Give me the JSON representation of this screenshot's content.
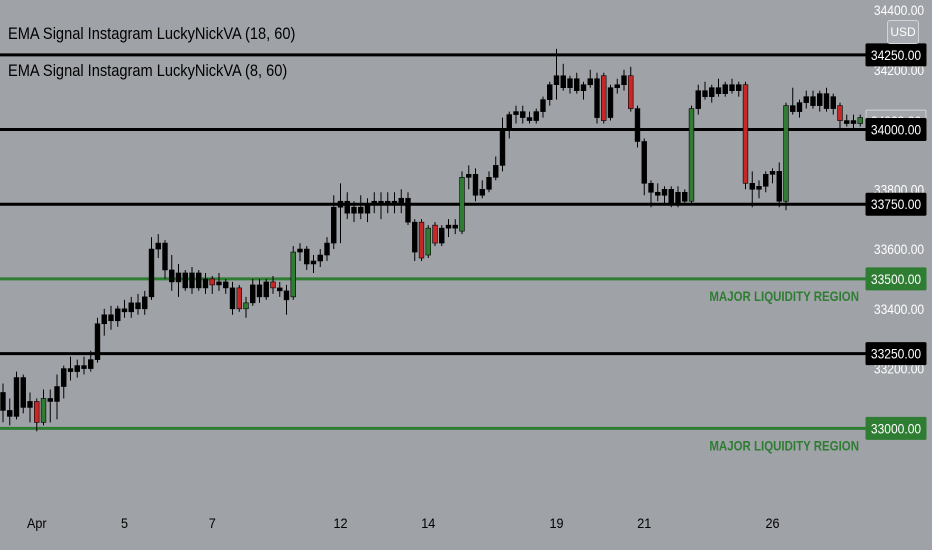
{
  "legend": {
    "line1": "EMA Signal Instagram LuckyNickVA (18, 60)",
    "line2": "EMA Signal Instagram LuckyNickVA (8, 60)"
  },
  "currency_button": "USD",
  "colors": {
    "background": "#9fa2a7",
    "bull": "#2e7d32",
    "bear": "#c62828",
    "neutral": "#000000",
    "liquidity": "#2e7d32",
    "level_line": "#000000"
  },
  "chart_data": {
    "type": "candlestick",
    "title": "",
    "xlabel": "",
    "ylabel": "",
    "ylim": [
      32710,
      34400
    ],
    "y_ticks": [
      "34400.00",
      "34200.00",
      "33800.00",
      "33600.00",
      "33400.00",
      "33200.00"
    ],
    "x_ticks": [
      {
        "label": "Apr",
        "bar": 5
      },
      {
        "label": "5",
        "bar": 18
      },
      {
        "label": "7",
        "bar": 31
      },
      {
        "label": "12",
        "bar": 50
      },
      {
        "label": "14",
        "bar": 63
      },
      {
        "label": "19",
        "bar": 82
      },
      {
        "label": "21",
        "bar": 95
      },
      {
        "label": "26",
        "bar": 114
      }
    ],
    "current_price": "34028.26",
    "levels": [
      {
        "price": 34250,
        "label": "34250.00",
        "kind": "level"
      },
      {
        "price": 34028.26,
        "label": "34028.26",
        "kind": "current"
      },
      {
        "price": 34000,
        "label": "34000.00",
        "kind": "level"
      },
      {
        "price": 33750,
        "label": "33750.00",
        "kind": "level"
      },
      {
        "price": 33500,
        "label": "33500.00",
        "kind": "liquidity",
        "note": "MAJOR LIQUIDITY REGION"
      },
      {
        "price": 33250,
        "label": "33250.00",
        "kind": "level"
      },
      {
        "price": 33000,
        "label": "33000.00",
        "kind": "liquidity",
        "note": "MAJOR LIQUIDITY REGION"
      }
    ],
    "candles": [
      {
        "o": 33120,
        "h": 33150,
        "l": 33020,
        "c": 33060,
        "t": "n"
      },
      {
        "o": 33060,
        "h": 33100,
        "l": 33010,
        "c": 33040,
        "t": "n"
      },
      {
        "o": 33040,
        "h": 33190,
        "l": 33030,
        "c": 33170,
        "t": "n"
      },
      {
        "o": 33170,
        "h": 33180,
        "l": 33050,
        "c": 33070,
        "t": "n"
      },
      {
        "o": 33070,
        "h": 33120,
        "l": 33020,
        "c": 33090,
        "t": "n"
      },
      {
        "o": 33090,
        "h": 33100,
        "l": 32990,
        "c": 33020,
        "t": "r"
      },
      {
        "o": 33020,
        "h": 33130,
        "l": 33010,
        "c": 33100,
        "t": "g"
      },
      {
        "o": 33100,
        "h": 33130,
        "l": 33020,
        "c": 33090,
        "t": "n"
      },
      {
        "o": 33090,
        "h": 33180,
        "l": 33030,
        "c": 33140,
        "t": "n"
      },
      {
        "o": 33140,
        "h": 33210,
        "l": 33100,
        "c": 33200,
        "t": "n"
      },
      {
        "o": 33200,
        "h": 33240,
        "l": 33160,
        "c": 33190,
        "t": "n"
      },
      {
        "o": 33190,
        "h": 33230,
        "l": 33170,
        "c": 33210,
        "t": "n"
      },
      {
        "o": 33210,
        "h": 33240,
        "l": 33180,
        "c": 33200,
        "t": "n"
      },
      {
        "o": 33200,
        "h": 33260,
        "l": 33190,
        "c": 33230,
        "t": "n"
      },
      {
        "o": 33230,
        "h": 33370,
        "l": 33220,
        "c": 33350,
        "t": "n"
      },
      {
        "o": 33350,
        "h": 33400,
        "l": 33310,
        "c": 33380,
        "t": "n"
      },
      {
        "o": 33380,
        "h": 33410,
        "l": 33330,
        "c": 33360,
        "t": "n"
      },
      {
        "o": 33360,
        "h": 33410,
        "l": 33340,
        "c": 33400,
        "t": "n"
      },
      {
        "o": 33400,
        "h": 33430,
        "l": 33370,
        "c": 33390,
        "t": "n"
      },
      {
        "o": 33390,
        "h": 33440,
        "l": 33370,
        "c": 33420,
        "t": "n"
      },
      {
        "o": 33420,
        "h": 33450,
        "l": 33380,
        "c": 33400,
        "t": "n"
      },
      {
        "o": 33400,
        "h": 33460,
        "l": 33380,
        "c": 33440,
        "t": "n"
      },
      {
        "o": 33440,
        "h": 33640,
        "l": 33430,
        "c": 33600,
        "t": "n"
      },
      {
        "o": 33600,
        "h": 33650,
        "l": 33570,
        "c": 33620,
        "t": "n"
      },
      {
        "o": 33620,
        "h": 33630,
        "l": 33500,
        "c": 33530,
        "t": "n"
      },
      {
        "o": 33530,
        "h": 33580,
        "l": 33460,
        "c": 33490,
        "t": "n"
      },
      {
        "o": 33490,
        "h": 33550,
        "l": 33440,
        "c": 33520,
        "t": "n"
      },
      {
        "o": 33520,
        "h": 33530,
        "l": 33460,
        "c": 33470,
        "t": "n"
      },
      {
        "o": 33470,
        "h": 33540,
        "l": 33450,
        "c": 33520,
        "t": "n"
      },
      {
        "o": 33520,
        "h": 33530,
        "l": 33460,
        "c": 33470,
        "t": "n"
      },
      {
        "o": 33470,
        "h": 33520,
        "l": 33450,
        "c": 33500,
        "t": "n"
      },
      {
        "o": 33500,
        "h": 33510,
        "l": 33450,
        "c": 33480,
        "t": "r"
      },
      {
        "o": 33480,
        "h": 33520,
        "l": 33460,
        "c": 33490,
        "t": "n"
      },
      {
        "o": 33490,
        "h": 33500,
        "l": 33450,
        "c": 33470,
        "t": "n"
      },
      {
        "o": 33470,
        "h": 33490,
        "l": 33380,
        "c": 33400,
        "t": "n"
      },
      {
        "o": 33470,
        "h": 33480,
        "l": 33390,
        "c": 33400,
        "t": "r"
      },
      {
        "o": 33400,
        "h": 33440,
        "l": 33370,
        "c": 33420,
        "t": "g"
      },
      {
        "o": 33420,
        "h": 33500,
        "l": 33410,
        "c": 33480,
        "t": "n"
      },
      {
        "o": 33480,
        "h": 33500,
        "l": 33420,
        "c": 33440,
        "t": "n"
      },
      {
        "o": 33440,
        "h": 33500,
        "l": 33430,
        "c": 33490,
        "t": "n"
      },
      {
        "o": 33490,
        "h": 33510,
        "l": 33450,
        "c": 33470,
        "t": "r"
      },
      {
        "o": 33470,
        "h": 33490,
        "l": 33440,
        "c": 33460,
        "t": "n"
      },
      {
        "o": 33460,
        "h": 33480,
        "l": 33380,
        "c": 33430,
        "t": "n"
      },
      {
        "o": 33440,
        "h": 33610,
        "l": 33430,
        "c": 33590,
        "t": "g"
      },
      {
        "o": 33590,
        "h": 33620,
        "l": 33560,
        "c": 33600,
        "t": "n"
      },
      {
        "o": 33600,
        "h": 33610,
        "l": 33530,
        "c": 33550,
        "t": "n"
      },
      {
        "o": 33550,
        "h": 33580,
        "l": 33520,
        "c": 33560,
        "t": "n"
      },
      {
        "o": 33560,
        "h": 33600,
        "l": 33540,
        "c": 33580,
        "t": "n"
      },
      {
        "o": 33580,
        "h": 33640,
        "l": 33560,
        "c": 33620,
        "t": "n"
      },
      {
        "o": 33620,
        "h": 33780,
        "l": 33600,
        "c": 33740,
        "t": "n"
      },
      {
        "o": 33740,
        "h": 33820,
        "l": 33620,
        "c": 33760,
        "t": "n"
      },
      {
        "o": 33760,
        "h": 33790,
        "l": 33700,
        "c": 33720,
        "t": "n"
      },
      {
        "o": 33720,
        "h": 33760,
        "l": 33690,
        "c": 33740,
        "t": "n"
      },
      {
        "o": 33740,
        "h": 33780,
        "l": 33700,
        "c": 33720,
        "t": "n"
      },
      {
        "o": 33720,
        "h": 33770,
        "l": 33690,
        "c": 33750,
        "t": "n"
      },
      {
        "o": 33750,
        "h": 33790,
        "l": 33720,
        "c": 33760,
        "t": "n"
      },
      {
        "o": 33760,
        "h": 33790,
        "l": 33700,
        "c": 33750,
        "t": "n"
      },
      {
        "o": 33750,
        "h": 33790,
        "l": 33720,
        "c": 33760,
        "t": "n"
      },
      {
        "o": 33760,
        "h": 33790,
        "l": 33720,
        "c": 33750,
        "t": "n"
      },
      {
        "o": 33750,
        "h": 33800,
        "l": 33720,
        "c": 33770,
        "t": "n"
      },
      {
        "o": 33770,
        "h": 33790,
        "l": 33680,
        "c": 33690,
        "t": "n"
      },
      {
        "o": 33690,
        "h": 33700,
        "l": 33560,
        "c": 33590,
        "t": "n"
      },
      {
        "o": 33690,
        "h": 33700,
        "l": 33560,
        "c": 33570,
        "t": "r"
      },
      {
        "o": 33580,
        "h": 33680,
        "l": 33570,
        "c": 33670,
        "t": "g"
      },
      {
        "o": 33680,
        "h": 33690,
        "l": 33610,
        "c": 33620,
        "t": "r"
      },
      {
        "o": 33620,
        "h": 33680,
        "l": 33610,
        "c": 33670,
        "t": "n"
      },
      {
        "o": 33670,
        "h": 33700,
        "l": 33640,
        "c": 33680,
        "t": "n"
      },
      {
        "o": 33680,
        "h": 33700,
        "l": 33650,
        "c": 33670,
        "t": "n"
      },
      {
        "o": 33660,
        "h": 33860,
        "l": 33650,
        "c": 33840,
        "t": "g"
      },
      {
        "o": 33840,
        "h": 33880,
        "l": 33800,
        "c": 33850,
        "t": "n"
      },
      {
        "o": 33850,
        "h": 33870,
        "l": 33760,
        "c": 33780,
        "t": "n"
      },
      {
        "o": 33780,
        "h": 33830,
        "l": 33770,
        "c": 33800,
        "t": "n"
      },
      {
        "o": 33800,
        "h": 33860,
        "l": 33790,
        "c": 33840,
        "t": "n"
      },
      {
        "o": 33840,
        "h": 33910,
        "l": 33830,
        "c": 33880,
        "t": "n"
      },
      {
        "o": 33880,
        "h": 34040,
        "l": 33860,
        "c": 34000,
        "t": "n"
      },
      {
        "o": 34000,
        "h": 34060,
        "l": 33970,
        "c": 34050,
        "t": "n"
      },
      {
        "o": 34050,
        "h": 34080,
        "l": 34020,
        "c": 34060,
        "t": "n"
      },
      {
        "o": 34060,
        "h": 34080,
        "l": 34020,
        "c": 34040,
        "t": "n"
      },
      {
        "o": 34040,
        "h": 34060,
        "l": 34020,
        "c": 34030,
        "t": "n"
      },
      {
        "o": 34030,
        "h": 34070,
        "l": 34020,
        "c": 34060,
        "t": "n"
      },
      {
        "o": 34060,
        "h": 34110,
        "l": 34040,
        "c": 34100,
        "t": "n"
      },
      {
        "o": 34100,
        "h": 34160,
        "l": 34080,
        "c": 34150,
        "t": "n"
      },
      {
        "o": 34150,
        "h": 34270,
        "l": 34100,
        "c": 34180,
        "t": "n"
      },
      {
        "o": 34180,
        "h": 34220,
        "l": 34130,
        "c": 34140,
        "t": "n"
      },
      {
        "o": 34140,
        "h": 34180,
        "l": 34120,
        "c": 34170,
        "t": "n"
      },
      {
        "o": 34170,
        "h": 34190,
        "l": 34120,
        "c": 34130,
        "t": "n"
      },
      {
        "o": 34130,
        "h": 34160,
        "l": 34100,
        "c": 34150,
        "t": "n"
      },
      {
        "o": 34150,
        "h": 34200,
        "l": 34140,
        "c": 34170,
        "t": "n"
      },
      {
        "o": 34170,
        "h": 34190,
        "l": 34020,
        "c": 34040,
        "t": "n"
      },
      {
        "o": 34180,
        "h": 34190,
        "l": 34020,
        "c": 34030,
        "t": "r"
      },
      {
        "o": 34040,
        "h": 34150,
        "l": 34030,
        "c": 34140,
        "t": "n"
      },
      {
        "o": 34140,
        "h": 34170,
        "l": 34120,
        "c": 34150,
        "t": "n"
      },
      {
        "o": 34150,
        "h": 34200,
        "l": 34130,
        "c": 34180,
        "t": "n"
      },
      {
        "o": 34180,
        "h": 34210,
        "l": 34060,
        "c": 34070,
        "t": "r"
      },
      {
        "o": 34070,
        "h": 34080,
        "l": 33940,
        "c": 33960,
        "t": "n"
      },
      {
        "o": 33960,
        "h": 33970,
        "l": 33780,
        "c": 33820,
        "t": "n"
      },
      {
        "o": 33820,
        "h": 33830,
        "l": 33740,
        "c": 33790,
        "t": "n"
      },
      {
        "o": 33790,
        "h": 33820,
        "l": 33760,
        "c": 33780,
        "t": "n"
      },
      {
        "o": 33780,
        "h": 33810,
        "l": 33750,
        "c": 33800,
        "t": "n"
      },
      {
        "o": 33800,
        "h": 33810,
        "l": 33740,
        "c": 33750,
        "t": "n"
      },
      {
        "o": 33750,
        "h": 33810,
        "l": 33740,
        "c": 33790,
        "t": "n"
      },
      {
        "o": 33790,
        "h": 33800,
        "l": 33750,
        "c": 33760,
        "t": "n"
      },
      {
        "o": 33760,
        "h": 34080,
        "l": 33750,
        "c": 34070,
        "t": "g"
      },
      {
        "o": 34070,
        "h": 34150,
        "l": 34050,
        "c": 34130,
        "t": "n"
      },
      {
        "o": 34130,
        "h": 34160,
        "l": 34100,
        "c": 34110,
        "t": "n"
      },
      {
        "o": 34110,
        "h": 34150,
        "l": 34090,
        "c": 34140,
        "t": "n"
      },
      {
        "o": 34140,
        "h": 34170,
        "l": 34110,
        "c": 34120,
        "t": "n"
      },
      {
        "o": 34120,
        "h": 34160,
        "l": 34110,
        "c": 34150,
        "t": "n"
      },
      {
        "o": 34150,
        "h": 34170,
        "l": 34120,
        "c": 34130,
        "t": "n"
      },
      {
        "o": 34130,
        "h": 34160,
        "l": 34110,
        "c": 34150,
        "t": "n"
      },
      {
        "o": 34150,
        "h": 34160,
        "l": 33800,
        "c": 33820,
        "t": "r"
      },
      {
        "o": 33820,
        "h": 33860,
        "l": 33740,
        "c": 33800,
        "t": "n"
      },
      {
        "o": 33800,
        "h": 33830,
        "l": 33770,
        "c": 33810,
        "t": "n"
      },
      {
        "o": 33810,
        "h": 33860,
        "l": 33790,
        "c": 33850,
        "t": "n"
      },
      {
        "o": 33850,
        "h": 33870,
        "l": 33820,
        "c": 33860,
        "t": "n"
      },
      {
        "o": 33860,
        "h": 33890,
        "l": 33740,
        "c": 33760,
        "t": "n"
      },
      {
        "o": 33760,
        "h": 34090,
        "l": 33730,
        "c": 34080,
        "t": "g"
      },
      {
        "o": 34080,
        "h": 34140,
        "l": 34050,
        "c": 34060,
        "t": "n"
      },
      {
        "o": 34060,
        "h": 34100,
        "l": 34040,
        "c": 34090,
        "t": "n"
      },
      {
        "o": 34090,
        "h": 34130,
        "l": 34070,
        "c": 34110,
        "t": "n"
      },
      {
        "o": 34110,
        "h": 34130,
        "l": 34070,
        "c": 34080,
        "t": "n"
      },
      {
        "o": 34080,
        "h": 34130,
        "l": 34060,
        "c": 34120,
        "t": "n"
      },
      {
        "o": 34120,
        "h": 34140,
        "l": 34060,
        "c": 34070,
        "t": "n"
      },
      {
        "o": 34070,
        "h": 34120,
        "l": 34050,
        "c": 34110,
        "t": "n"
      },
      {
        "o": 34080,
        "h": 34090,
        "l": 34000,
        "c": 34030,
        "t": "r"
      },
      {
        "o": 34030,
        "h": 34050,
        "l": 34010,
        "c": 34020,
        "t": "n"
      },
      {
        "o": 34020,
        "h": 34050,
        "l": 34000,
        "c": 34030,
        "t": "n"
      },
      {
        "o": 34020,
        "h": 34050,
        "l": 34010,
        "c": 34040,
        "t": "g"
      }
    ]
  }
}
